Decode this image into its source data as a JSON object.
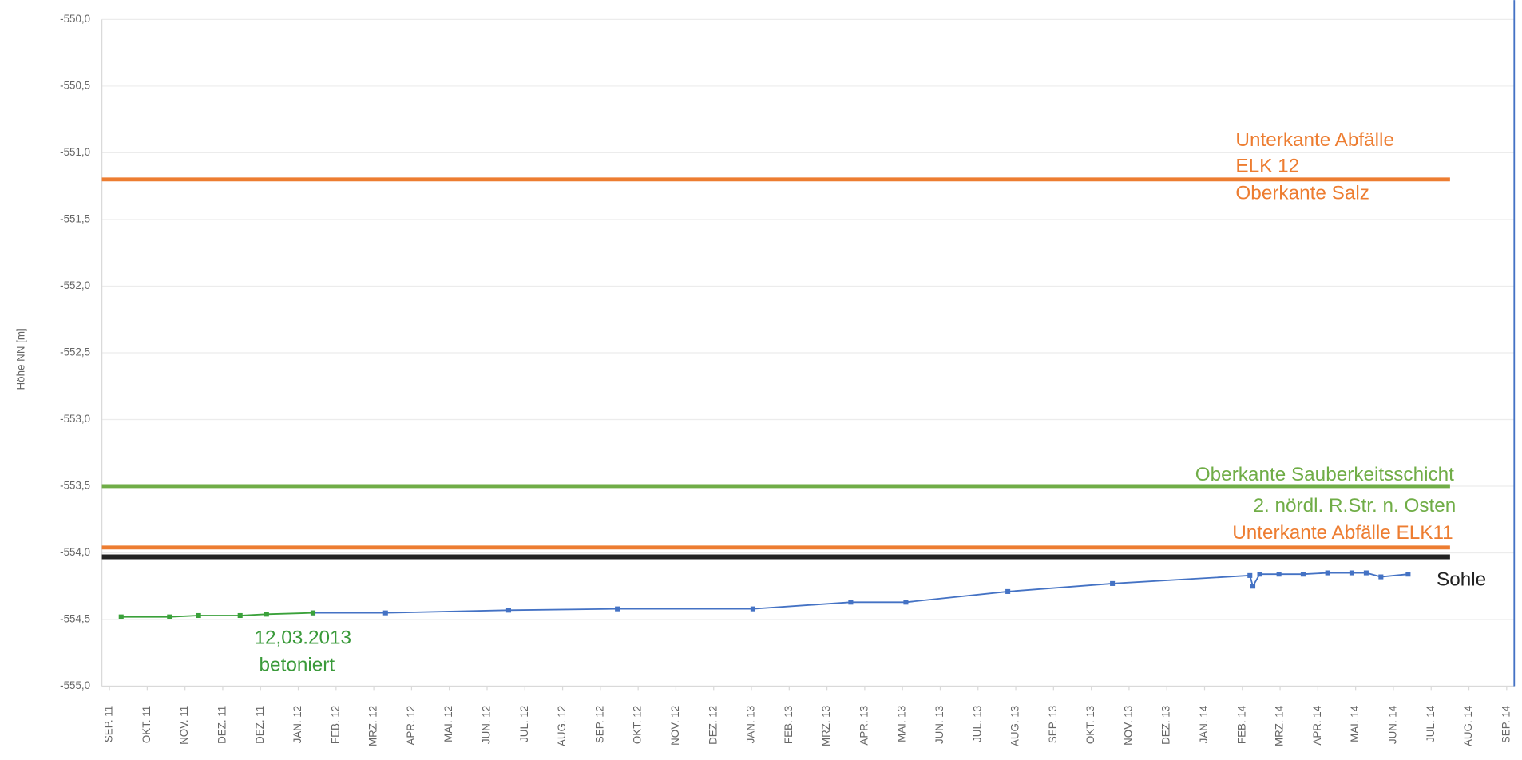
{
  "chart_data": {
    "type": "line",
    "y_label": "Höhe NN [m]",
    "xlim": [
      -0.2,
      37.2
    ],
    "xticks": [
      {
        "value": 0,
        "label": "SEP. 11"
      },
      {
        "value": 1,
        "label": "OKT. 11"
      },
      {
        "value": 2,
        "label": "NOV. 11"
      },
      {
        "value": 3,
        "label": "DEZ. 11"
      },
      {
        "value": 4,
        "label": "DEZ. 11"
      },
      {
        "value": 5,
        "label": "JAN. 12"
      },
      {
        "value": 6,
        "label": "FEB. 12"
      },
      {
        "value": 7,
        "label": "MRZ. 12"
      },
      {
        "value": 8,
        "label": "APR. 12"
      },
      {
        "value": 9,
        "label": "MAI. 12"
      },
      {
        "value": 10,
        "label": "JUN. 12"
      },
      {
        "value": 11,
        "label": "JUL. 12"
      },
      {
        "value": 12,
        "label": "AUG. 12"
      },
      {
        "value": 13,
        "label": "SEP. 12"
      },
      {
        "value": 14,
        "label": "OKT. 12"
      },
      {
        "value": 15,
        "label": "NOV. 12"
      },
      {
        "value": 16,
        "label": "DEZ. 12"
      },
      {
        "value": 17,
        "label": "JAN. 13"
      },
      {
        "value": 18,
        "label": "FEB. 13"
      },
      {
        "value": 19,
        "label": "MRZ. 13"
      },
      {
        "value": 20,
        "label": "APR. 13"
      },
      {
        "value": 21,
        "label": "MAI. 13"
      },
      {
        "value": 22,
        "label": "JUN. 13"
      },
      {
        "value": 23,
        "label": "JUL. 13"
      },
      {
        "value": 24,
        "label": "AUG. 13"
      },
      {
        "value": 25,
        "label": "SEP. 13"
      },
      {
        "value": 26,
        "label": "OKT. 13"
      },
      {
        "value": 27,
        "label": "NOV. 13"
      },
      {
        "value": 28,
        "label": "DEZ. 13"
      },
      {
        "value": 29,
        "label": "JAN. 14"
      },
      {
        "value": 30,
        "label": "FEB. 14"
      },
      {
        "value": 31,
        "label": "MRZ. 14"
      },
      {
        "value": 32,
        "label": "APR. 14"
      },
      {
        "value": 33,
        "label": "MAI. 14"
      },
      {
        "value": 34,
        "label": "JUN. 14"
      },
      {
        "value": 35,
        "label": "JUL. 14"
      },
      {
        "value": 36,
        "label": "AUG. 14"
      },
      {
        "value": 37,
        "label": "SEP. 14"
      }
    ],
    "ylim": [
      -555,
      -550
    ],
    "yticks": [
      {
        "value": -550,
        "label": "-550,0"
      },
      {
        "value": -550.5,
        "label": "-550,5"
      },
      {
        "value": -551,
        "label": "-551,0"
      },
      {
        "value": -551.5,
        "label": "-551,5"
      },
      {
        "value": -552,
        "label": "-552,0"
      },
      {
        "value": -552.5,
        "label": "-552,5"
      },
      {
        "value": -553,
        "label": "-553,0"
      },
      {
        "value": -553.5,
        "label": "-553,5"
      },
      {
        "value": -554,
        "label": "-554,0"
      },
      {
        "value": -554.5,
        "label": "-554,5"
      },
      {
        "value": -555,
        "label": "-555,0"
      }
    ],
    "grid": true,
    "series": [
      {
        "color": "#ed7d31",
        "line_width": 4,
        "markers": false,
        "x": [
          -0.2,
          35.5
        ],
        "values": [
          -551.2,
          -551.2
        ]
      },
      {
        "color": "#70ad47",
        "line_width": 4,
        "markers": false,
        "x": [
          -0.2,
          35.5
        ],
        "values": [
          -553.5,
          -553.5
        ]
      },
      {
        "color": "#ed7d31",
        "line_width": 4,
        "markers": false,
        "x": [
          -0.2,
          35.5
        ],
        "values": [
          -553.96,
          -553.96
        ]
      },
      {
        "color": "#222222",
        "line_width": 5,
        "markers": false,
        "x": [
          -0.2,
          35.5
        ],
        "values": [
          -554.03,
          -554.03
        ]
      },
      {
        "color": "#4472c4",
        "line_width": 1.5,
        "markers": true,
        "x": [
          5.39,
          7.31,
          10.57,
          13.45,
          17.04,
          19.63,
          21.09,
          23.79,
          26.56,
          30.2,
          30.28,
          30.46,
          30.97,
          31.61,
          32.26,
          32.9,
          33.28,
          33.67,
          34.39
        ],
        "values": [
          -554.45,
          -554.45,
          -554.43,
          -554.42,
          -554.42,
          -554.37,
          -554.37,
          -554.29,
          -554.23,
          -554.17,
          -554.25,
          -554.16,
          -554.16,
          -554.16,
          -554.15,
          -554.15,
          -554.15,
          -554.18,
          -554.16
        ]
      },
      {
        "color": "#3aa13a",
        "line_width": 1.5,
        "markers": true,
        "x": [
          0.31,
          1.59,
          2.36,
          3.46,
          4.16,
          5.39
        ],
        "values": [
          -554.48,
          -554.48,
          -554.47,
          -554.47,
          -554.46,
          -554.45
        ]
      }
    ],
    "annotations": [
      "Unterkante Abfälle",
      "ELK 12",
      "Oberkante Salz",
      "Oberkante Sauberkeitsschicht",
      "2. nördl. R.Str. n. Osten",
      "Unterkante Abfälle ELK11",
      "Sohle",
      "12,03.2013",
      "betoniert"
    ]
  }
}
